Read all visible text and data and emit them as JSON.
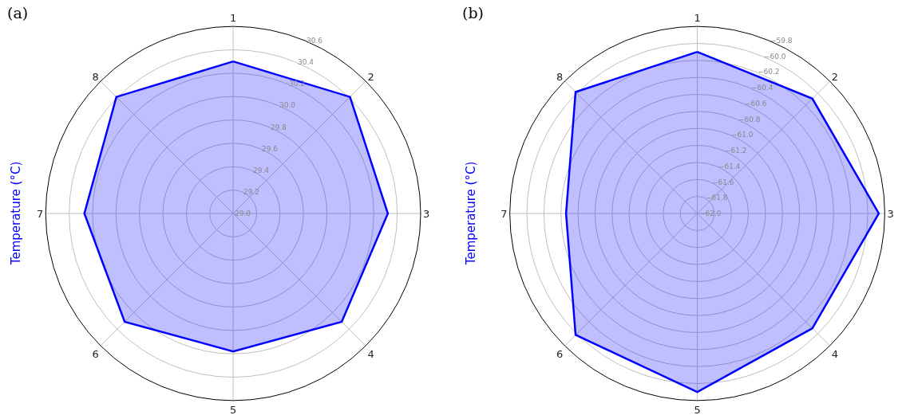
{
  "chart_data": [
    {
      "type": "radar",
      "title": "(a)",
      "ylabel": "Temperature (°C)",
      "categories": [
        "1",
        "2",
        "3",
        "4",
        "5",
        "6",
        "7",
        "8"
      ],
      "series": [
        {
          "color": "#0000ff",
          "values": [
            30.3,
            30.41,
            30.32,
            30.31,
            30.18,
            30.31,
            30.27,
            30.41
          ]
        }
      ],
      "ylim": [
        29.0,
        30.6
      ],
      "yticks": [
        {
          "value": 29.0,
          "label": "29.0"
        },
        {
          "value": 29.2,
          "label": "29.2"
        },
        {
          "value": 29.4,
          "label": "29.4"
        },
        {
          "value": 29.6,
          "label": "29.6"
        },
        {
          "value": 29.8,
          "label": "29.8"
        },
        {
          "value": 30.0,
          "label": "30.0"
        },
        {
          "value": 30.2,
          "label": "30.2"
        },
        {
          "value": 30.4,
          "label": "30.4"
        },
        {
          "value": 30.6,
          "label": "30.6"
        }
      ],
      "grid": true
    },
    {
      "type": "radar",
      "title": "(b)",
      "ylabel": "Temperature (°C)",
      "categories": [
        "1",
        "2",
        "3",
        "4",
        "5",
        "6",
        "7",
        "8"
      ],
      "series": [
        {
          "color": "#0000ff",
          "values": [
            -60.1,
            -60.09,
            -59.87,
            -60.09,
            -59.9,
            -59.98,
            -60.46,
            -59.98
          ]
        }
      ],
      "ylim": [
        -62.0,
        -59.8
      ],
      "yticks": [
        {
          "value": -62.0,
          "label": "−62.0"
        },
        {
          "value": -61.8,
          "label": "−61.8"
        },
        {
          "value": -61.6,
          "label": "−61.6"
        },
        {
          "value": -61.4,
          "label": "−61.4"
        },
        {
          "value": -61.2,
          "label": "−61.2"
        },
        {
          "value": -61.0,
          "label": "−61.0"
        },
        {
          "value": -60.8,
          "label": "−60.8"
        },
        {
          "value": -60.6,
          "label": "−60.6"
        },
        {
          "value": -60.4,
          "label": "−60.4"
        },
        {
          "value": -60.2,
          "label": "−60.2"
        },
        {
          "value": -60.0,
          "label": "−60.0"
        },
        {
          "value": -59.8,
          "label": "−59.8"
        }
      ],
      "grid": true
    }
  ]
}
